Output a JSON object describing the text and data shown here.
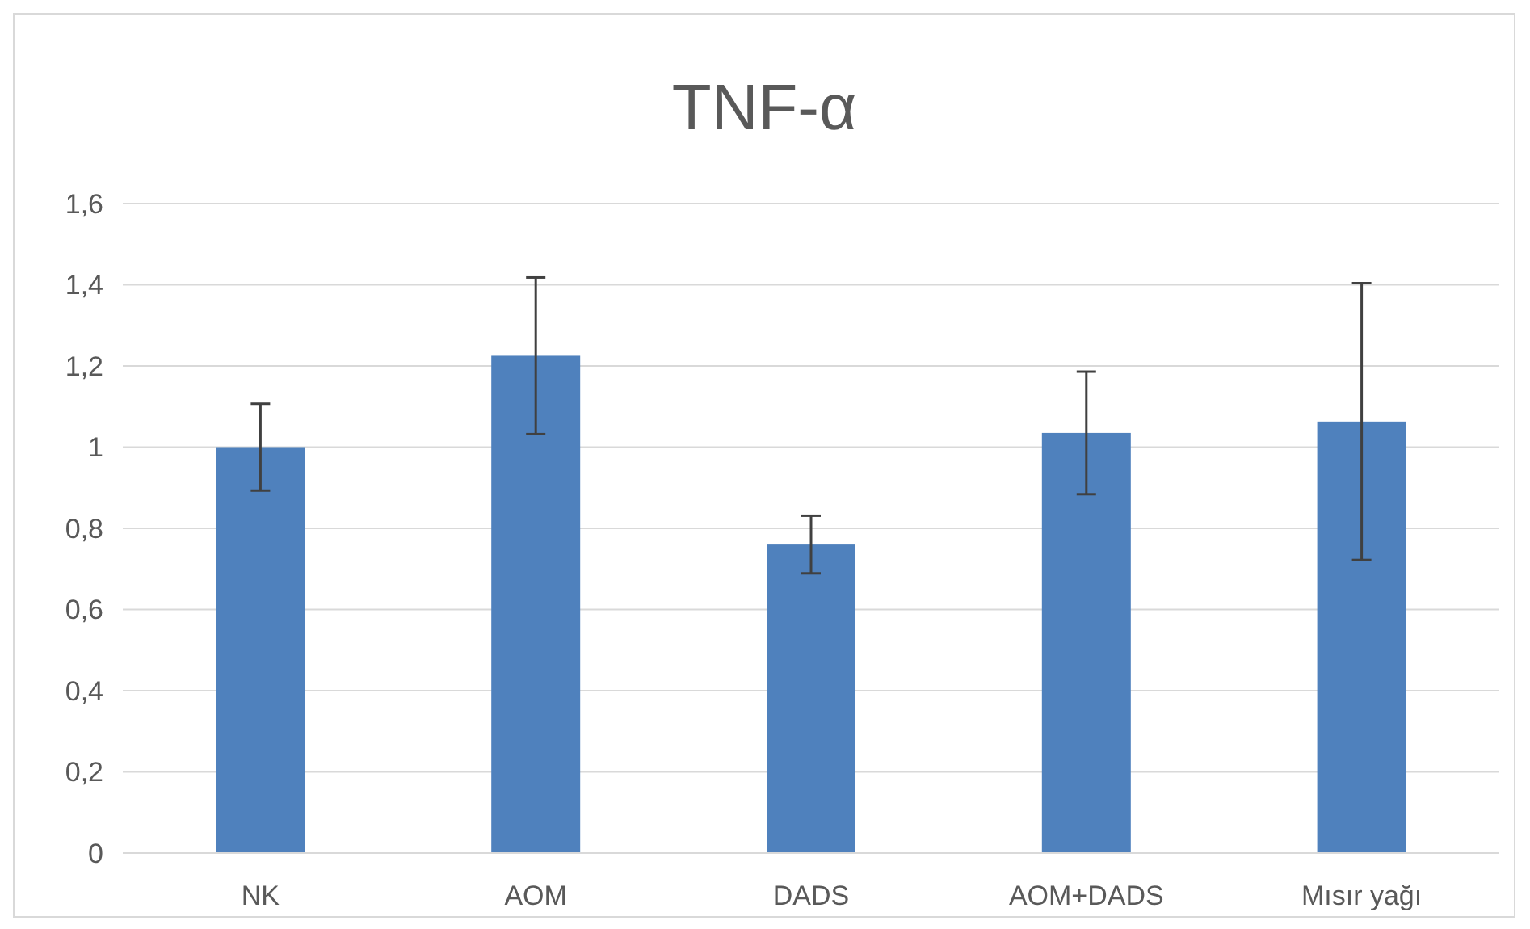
{
  "chart_data": {
    "type": "bar",
    "title": "TNF-α",
    "categories": [
      "NK",
      "AOM",
      "DADS",
      "AOM+DADS",
      "Mısır yağı"
    ],
    "values": [
      1.0,
      1.225,
      0.76,
      1.035,
      1.063
    ],
    "errors": [
      0.107,
      0.193,
      0.071,
      0.151,
      0.341
    ],
    "color": "#4f81bd",
    "ylim": [
      0,
      1.6
    ],
    "yticks": [
      0,
      {
        "value": 0.2,
        "label": "0,2"
      },
      {
        "value": 0.4,
        "label": "0,4"
      },
      {
        "value": 0.6,
        "label": "0,6"
      },
      {
        "value": 0.8,
        "label": "0,8"
      },
      1,
      {
        "value": 1.2,
        "label": "1,2"
      },
      {
        "value": 1.4,
        "label": "1,4"
      },
      {
        "value": 1.6,
        "label": "1,6"
      }
    ],
    "grid": "y"
  }
}
